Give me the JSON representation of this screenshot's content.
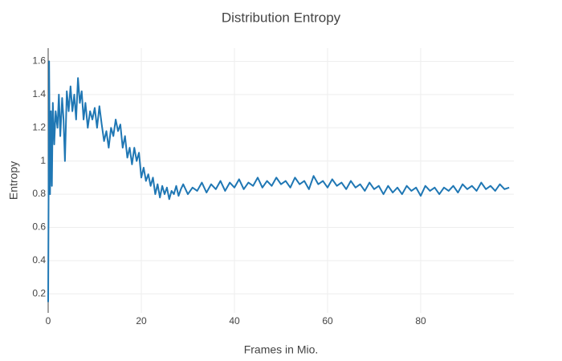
{
  "chart_data": {
    "type": "line",
    "title": "Distribution Entropy",
    "x_label": "Frames in Mio.",
    "y_label": "Entropy",
    "color": "#1f77b4",
    "grid": true,
    "xlim": [
      0,
      100
    ],
    "xticks": [
      0,
      20,
      40,
      60,
      80
    ],
    "ylim": [
      0.085,
      1.68
    ],
    "yticks": [
      0.2,
      0.4,
      0.6,
      0.8,
      1,
      1.2,
      1.4,
      1.6
    ],
    "x": [
      0,
      0.2,
      0.4,
      0.6,
      0.8,
      1,
      1.3,
      1.6,
      2,
      2.3,
      2.6,
      3,
      3.3,
      3.6,
      4,
      4.4,
      4.8,
      5.2,
      5.6,
      6,
      6.4,
      6.8,
      7.2,
      7.6,
      8,
      8.5,
      9,
      9.5,
      10,
      10.5,
      11,
      11.5,
      12,
      12.5,
      13,
      13.5,
      14,
      14.5,
      15,
      15.5,
      16,
      16.5,
      17,
      17.5,
      18,
      18.5,
      19,
      19.5,
      20,
      20.5,
      21,
      21.5,
      22,
      22.5,
      23,
      23.5,
      24,
      24.5,
      25,
      25.5,
      26,
      26.5,
      27,
      27.5,
      28,
      28.5,
      29,
      30,
      31,
      32,
      33,
      34,
      35,
      36,
      37,
      38,
      39,
      40,
      41,
      42,
      43,
      44,
      45,
      46,
      47,
      48,
      49,
      50,
      51,
      52,
      53,
      54,
      55,
      56,
      57,
      58,
      59,
      60,
      61,
      62,
      63,
      64,
      65,
      66,
      67,
      68,
      69,
      70,
      71,
      72,
      73,
      74,
      75,
      76,
      77,
      78,
      79,
      80,
      81,
      82,
      83,
      84,
      85,
      86,
      87,
      88,
      89,
      90,
      91,
      92,
      93,
      94,
      95,
      96,
      97,
      98,
      99
    ],
    "values": [
      0.15,
      1.6,
      0.8,
      1.3,
      0.85,
      1.35,
      1.1,
      1.3,
      1.2,
      1.4,
      1.15,
      1.38,
      1.25,
      1.0,
      1.42,
      1.3,
      1.45,
      1.3,
      1.4,
      1.25,
      1.5,
      1.35,
      1.42,
      1.25,
      1.35,
      1.2,
      1.3,
      1.25,
      1.32,
      1.2,
      1.33,
      1.22,
      1.12,
      1.18,
      1.08,
      1.2,
      1.15,
      1.25,
      1.18,
      1.22,
      1.08,
      1.15,
      1.02,
      1.08,
      0.98,
      1.08,
      1.0,
      1.05,
      0.9,
      0.96,
      0.88,
      0.92,
      0.85,
      0.9,
      0.8,
      0.86,
      0.78,
      0.85,
      0.8,
      0.84,
      0.77,
      0.82,
      0.8,
      0.85,
      0.79,
      0.83,
      0.86,
      0.8,
      0.84,
      0.82,
      0.87,
      0.81,
      0.86,
      0.83,
      0.88,
      0.82,
      0.87,
      0.84,
      0.89,
      0.83,
      0.87,
      0.85,
      0.9,
      0.84,
      0.88,
      0.85,
      0.9,
      0.86,
      0.88,
      0.84,
      0.9,
      0.86,
      0.88,
      0.83,
      0.91,
      0.86,
      0.88,
      0.84,
      0.89,
      0.85,
      0.87,
      0.83,
      0.88,
      0.84,
      0.86,
      0.82,
      0.87,
      0.83,
      0.85,
      0.8,
      0.85,
      0.81,
      0.84,
      0.8,
      0.85,
      0.82,
      0.84,
      0.79,
      0.85,
      0.82,
      0.84,
      0.8,
      0.84,
      0.82,
      0.85,
      0.81,
      0.86,
      0.83,
      0.85,
      0.82,
      0.87,
      0.83,
      0.85,
      0.82,
      0.86,
      0.83,
      0.84
    ]
  }
}
